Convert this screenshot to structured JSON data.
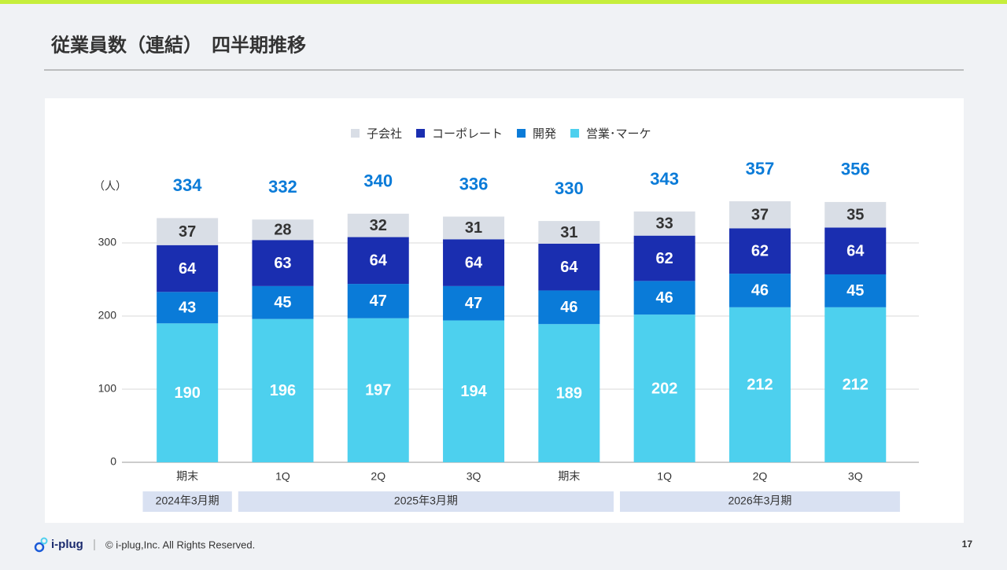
{
  "header": {
    "title": "従業員数（連結）　四半期推移"
  },
  "chart_data": {
    "type": "stacked-bar",
    "y_label": "（人）",
    "groups": [
      {
        "label": "2024年3月期",
        "categories": [
          "期末"
        ]
      },
      {
        "label": "2025年3月期",
        "categories": [
          "1Q",
          "2Q",
          "3Q",
          "期末"
        ]
      },
      {
        "label": "2026年3月期",
        "categories": [
          "1Q",
          "2Q",
          "3Q"
        ]
      }
    ],
    "series": [
      {
        "name": "営業･マーケ",
        "color": "#4dd0ee",
        "values": [
          190,
          196,
          197,
          194,
          189,
          202,
          212,
          212
        ]
      },
      {
        "name": "開発",
        "color": "#0a7bd8",
        "values": [
          43,
          45,
          47,
          47,
          46,
          46,
          46,
          45
        ]
      },
      {
        "name": "コーポレート",
        "color": "#1a2eb0",
        "values": [
          64,
          63,
          64,
          64,
          64,
          62,
          62,
          64
        ]
      },
      {
        "name": "子会社",
        "color": "#d9dee6",
        "values": [
          37,
          28,
          32,
          31,
          31,
          33,
          37,
          35
        ]
      }
    ],
    "totals": [
      334,
      332,
      340,
      336,
      330,
      343,
      357,
      356
    ],
    "totals_color": "#0a7bd8",
    "ylim": [
      0,
      400
    ],
    "yticks": [
      0,
      100,
      200,
      300
    ],
    "grid": true
  },
  "footer": {
    "brand": "i-plug",
    "copyright": "© i-plug,Inc. All Rights Reserved.",
    "page": "17"
  }
}
